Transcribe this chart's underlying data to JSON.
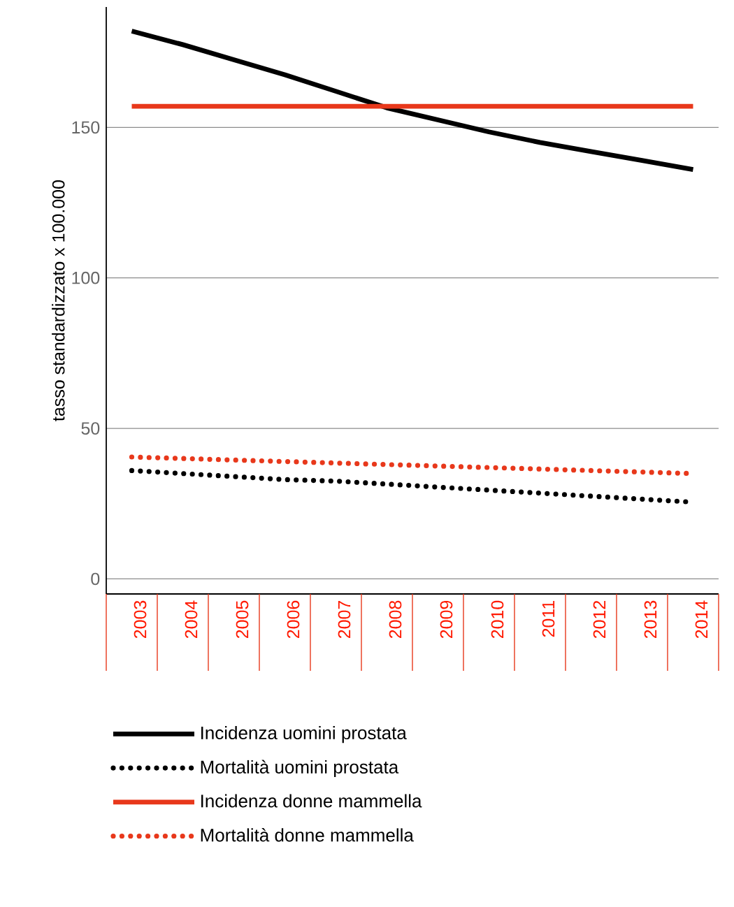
{
  "chart_data": {
    "type": "line",
    "ylabel": "tasso standardizzato x 100.000",
    "categories": [
      "2003",
      "2004",
      "2005",
      "2006",
      "2007",
      "2008",
      "2009",
      "2010",
      "2011",
      "2012",
      "2013",
      "2014"
    ],
    "series": [
      {
        "name": "Incidenza uomini prostata",
        "color": "#000000",
        "line_style": "solid",
        "values": [
          182,
          177.5,
          172.5,
          167.5,
          162,
          156.5,
          152.5,
          148.5,
          145,
          142,
          139,
          136
        ]
      },
      {
        "name": "Mortalità uomini prostata",
        "color": "#000000",
        "line_style": "dotted",
        "values": [
          36,
          35,
          34,
          33,
          32.5,
          31.5,
          30.5,
          29.5,
          28.5,
          27.5,
          26.5,
          25.5
        ]
      },
      {
        "name": "Incidenza donne mammella",
        "color": "#e8381b",
        "line_style": "solid",
        "values": [
          157,
          157,
          157,
          157,
          157,
          157,
          157,
          157,
          157,
          157,
          157,
          157
        ]
      },
      {
        "name": "Mortalità donne mammella",
        "color": "#e8381b",
        "line_style": "dotted",
        "values": [
          40.5,
          40,
          39.5,
          39,
          38.5,
          38,
          37.5,
          37,
          36.5,
          36,
          35.5,
          35
        ]
      }
    ],
    "ylim": [
      -5,
      190
    ],
    "yticks": [
      0,
      50,
      100,
      150
    ],
    "grid": "y",
    "legend": "bottom",
    "marker": "none"
  }
}
